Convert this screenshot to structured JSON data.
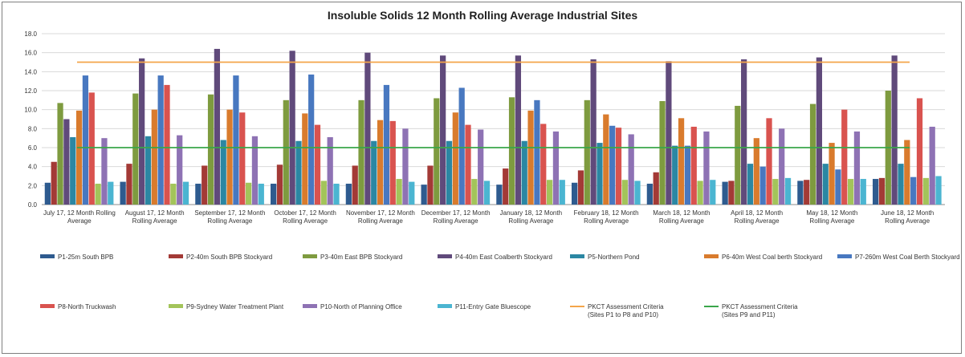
{
  "chart_data": {
    "type": "bar",
    "title": "Insoluble Solids 12 Month Rolling Average Industrial Sites",
    "xlabel": "",
    "ylabel": "",
    "ylim": [
      0,
      18
    ],
    "yticks": [
      "0.0",
      "2.0",
      "4.0",
      "6.0",
      "8.0",
      "10.0",
      "12.0",
      "14.0",
      "16.0",
      "18.0"
    ],
    "grid": true,
    "legend_position": "bottom",
    "categories": [
      [
        "July 17, 12 Month Rolling",
        "Average"
      ],
      [
        "August 17, 12 Month",
        "Rolling Average"
      ],
      [
        "September 17, 12 Month",
        "Rolling Average"
      ],
      [
        "October 17, 12 Month",
        "Rolling Average"
      ],
      [
        "November 17, 12 Month",
        "Rolling Average"
      ],
      [
        "December 17, 12 Month",
        "Rolling Average"
      ],
      [
        "January 18, 12 Month",
        "Rolling Average"
      ],
      [
        "February 18, 12 Month",
        "Rolling Average"
      ],
      [
        "March 18, 12 Month",
        "Rolling Average"
      ],
      [
        "April 18, 12 Month",
        "Rolling Average"
      ],
      [
        "May 18, 12 Month",
        "Rolling Average"
      ],
      [
        "June 18, 12 Month",
        "Rolling Average"
      ]
    ],
    "series": [
      {
        "name": "P1-25m South BPB",
        "color": "#2e5b8f",
        "values": [
          2.3,
          2.4,
          2.2,
          2.2,
          2.2,
          2.1,
          2.1,
          2.3,
          2.2,
          2.4,
          2.5,
          2.7
        ]
      },
      {
        "name": "P2-40m South BPB Stockyard",
        "color": "#a33a36",
        "values": [
          4.5,
          4.3,
          4.1,
          4.2,
          4.1,
          4.1,
          3.8,
          3.6,
          3.4,
          2.5,
          2.6,
          2.8
        ]
      },
      {
        "name": "P3-40m East BPB Stockyard",
        "color": "#7e9b3f",
        "values": [
          10.7,
          11.7,
          11.6,
          11.0,
          11.0,
          11.2,
          11.3,
          11.0,
          10.9,
          10.4,
          10.6,
          12.0
        ]
      },
      {
        "name": "P4-40m East Coalberth Stockyard",
        "color": "#604a7b",
        "values": [
          9.0,
          15.4,
          16.4,
          16.2,
          16.0,
          15.7,
          15.7,
          15.3,
          15.1,
          15.3,
          15.5,
          15.7
        ]
      },
      {
        "name": "P5-Northern Pond",
        "color": "#2b87a3",
        "values": [
          7.1,
          7.2,
          6.8,
          6.7,
          6.7,
          6.7,
          6.7,
          6.5,
          6.2,
          4.3,
          4.3,
          4.3
        ]
      },
      {
        "name": "P6-40m West Coal berth Stockyard",
        "color": "#d97b2d",
        "values": [
          9.9,
          10.0,
          10.0,
          9.6,
          8.9,
          9.7,
          9.9,
          9.5,
          9.1,
          7.0,
          6.5,
          6.8
        ]
      },
      {
        "name": "P7-260m West Coal Berth Stockyard",
        "color": "#4878c0",
        "values": [
          13.6,
          13.6,
          13.6,
          13.7,
          12.6,
          12.3,
          11.0,
          8.3,
          6.2,
          4.0,
          3.7,
          2.9
        ]
      },
      {
        "name": "P8-North Truckwash",
        "color": "#d9534f",
        "values": [
          11.8,
          12.6,
          9.7,
          8.4,
          8.8,
          8.4,
          8.5,
          8.1,
          8.2,
          9.1,
          10.0,
          11.2
        ]
      },
      {
        "name": "P9-Sydney Water Treatment Plant",
        "color": "#a3c45a",
        "values": [
          2.2,
          2.2,
          2.3,
          2.5,
          2.7,
          2.7,
          2.6,
          2.6,
          2.5,
          2.7,
          2.7,
          2.8
        ]
      },
      {
        "name": "P10-North of Planning Office",
        "color": "#8e72b4",
        "values": [
          7.0,
          7.3,
          7.2,
          7.1,
          8.0,
          7.9,
          7.7,
          7.4,
          7.7,
          8.0,
          7.7,
          8.2
        ]
      },
      {
        "name": "P11-Entry Gate Bluescope",
        "color": "#4bb5d1",
        "values": [
          2.4,
          2.4,
          2.2,
          2.2,
          2.4,
          2.5,
          2.6,
          2.5,
          2.6,
          2.8,
          2.7,
          3.0
        ]
      }
    ],
    "reference_lines": [
      {
        "name": [
          "PKCT Assessment Criteria",
          "(Sites P1 to P8 and P10)"
        ],
        "color": "#f4a54a",
        "value": 15.0
      },
      {
        "name": [
          "PKCT Assessment Criteria",
          "(Sites P9 and P11)"
        ],
        "color": "#3aa64a",
        "value": 6.0
      }
    ]
  }
}
